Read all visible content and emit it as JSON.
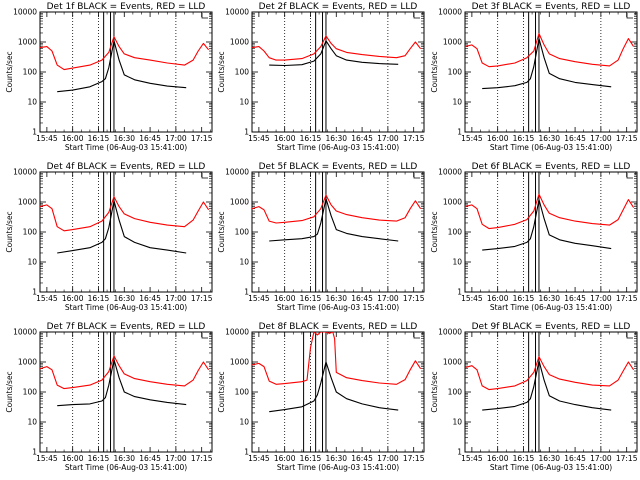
{
  "chart_data": [
    {
      "type": "line",
      "title": "Det 1f BLACK = Events, RED = LLD",
      "xlabel": "Start Time (06-Aug-03 15:41:00)",
      "ylabel": "Counts/sec",
      "yscale": "log",
      "ylim": [
        1,
        10000
      ],
      "x_ticks": [
        "15:45",
        "16:00",
        "16:15",
        "16:30",
        "16:45",
        "17:00",
        "17:15"
      ],
      "y_ticks": [
        "1",
        "10",
        "100",
        "1000",
        "10000"
      ],
      "series": [
        {
          "name": "Events",
          "color": "#000000",
          "x": [
            "15:51",
            "16:00",
            "16:10",
            "16:17",
            "16:19",
            "16:21",
            "16:24",
            "16:27",
            "16:30",
            "16:36",
            "16:45",
            "16:55",
            "17:06"
          ],
          "y": [
            22,
            25,
            32,
            48,
            60,
            140,
            1100,
            250,
            80,
            55,
            42,
            34,
            30
          ]
        },
        {
          "name": "LLD",
          "color": "#ff0000",
          "x": [
            "15:41",
            "15:45",
            "15:48",
            "15:51",
            "15:55",
            "16:00",
            "16:10",
            "16:17",
            "16:21",
            "16:24",
            "16:27",
            "16:30",
            "16:36",
            "16:45",
            "16:55",
            "17:05",
            "17:10",
            "17:13",
            "17:16",
            "17:19"
          ],
          "y": [
            650,
            700,
            500,
            170,
            120,
            135,
            170,
            250,
            450,
            1500,
            700,
            400,
            300,
            250,
            200,
            170,
            250,
            500,
            900,
            550
          ]
        }
      ],
      "markers_dotted": [
        "16:00",
        "16:15",
        "17:00"
      ],
      "markers_solid": [
        "16:18",
        "16:22",
        "16:24"
      ]
    },
    {
      "type": "line",
      "title": "Det 2f BLACK = Events, RED = LLD",
      "xlabel": "Start Time (06-Aug-03 15:41:00)",
      "ylabel": "Counts/sec",
      "yscale": "log",
      "ylim": [
        1,
        10000
      ],
      "x_ticks": [
        "15:45",
        "16:00",
        "16:15",
        "16:30",
        "16:45",
        "17:00",
        "17:15"
      ],
      "y_ticks": [
        "1",
        "10",
        "100",
        "1000",
        "10000"
      ],
      "series": [
        {
          "name": "Events",
          "color": "#000000",
          "x": [
            "15:51",
            "16:00",
            "16:10",
            "16:17",
            "16:21",
            "16:24",
            "16:27",
            "16:30",
            "16:36",
            "16:45",
            "16:55",
            "17:06"
          ],
          "y": [
            170,
            165,
            175,
            230,
            400,
            1100,
            600,
            350,
            250,
            210,
            190,
            180
          ]
        },
        {
          "name": "LLD",
          "color": "#ff0000",
          "x": [
            "15:41",
            "15:45",
            "15:48",
            "15:51",
            "15:55",
            "16:00",
            "16:10",
            "16:17",
            "16:21",
            "16:24",
            "16:27",
            "16:30",
            "16:36",
            "16:45",
            "16:55",
            "17:05",
            "17:10",
            "17:13",
            "17:16",
            "17:19"
          ],
          "y": [
            650,
            700,
            500,
            300,
            250,
            250,
            280,
            400,
            700,
            1600,
            900,
            600,
            450,
            380,
            330,
            300,
            350,
            600,
            1000,
            600
          ]
        }
      ],
      "markers_dotted": [
        "16:00",
        "16:15",
        "17:00"
      ],
      "markers_solid": [
        "16:18",
        "16:22",
        "16:24"
      ]
    },
    {
      "type": "line",
      "title": "Det 3f BLACK = Events, RED = LLD",
      "xlabel": "Start Time (06-Aug-03 15:41:00)",
      "ylabel": "Counts/sec",
      "yscale": "log",
      "ylim": [
        1,
        10000
      ],
      "x_ticks": [
        "15:45",
        "16:00",
        "16:15",
        "16:30",
        "16:45",
        "17:00",
        "17:15"
      ],
      "y_ticks": [
        "1",
        "10",
        "100",
        "1000",
        "10000"
      ],
      "series": [
        {
          "name": "Events",
          "color": "#000000",
          "x": [
            "15:51",
            "16:00",
            "16:10",
            "16:17",
            "16:19",
            "16:21",
            "16:24",
            "16:27",
            "16:30",
            "16:36",
            "16:45",
            "16:55",
            "17:06"
          ],
          "y": [
            28,
            30,
            35,
            45,
            60,
            150,
            1300,
            300,
            90,
            60,
            45,
            38,
            32
          ]
        },
        {
          "name": "LLD",
          "color": "#ff0000",
          "x": [
            "15:41",
            "15:45",
            "15:48",
            "15:51",
            "15:55",
            "16:00",
            "16:10",
            "16:17",
            "16:21",
            "16:24",
            "16:27",
            "16:30",
            "16:36",
            "16:45",
            "16:55",
            "17:05",
            "17:10",
            "17:13",
            "17:16",
            "17:19"
          ],
          "y": [
            700,
            800,
            600,
            200,
            150,
            160,
            200,
            300,
            500,
            1900,
            800,
            400,
            280,
            220,
            180,
            160,
            250,
            600,
            1300,
            700
          ]
        }
      ],
      "markers_dotted": [
        "16:00",
        "16:15",
        "17:00"
      ],
      "markers_solid": [
        "16:18",
        "16:22",
        "16:24"
      ]
    },
    {
      "type": "line",
      "title": "Det 4f BLACK = Events, RED = LLD",
      "xlabel": "Start Time (06-Aug-03 15:41:00)",
      "ylabel": "Counts/sec",
      "yscale": "log",
      "ylim": [
        1,
        10000
      ],
      "x_ticks": [
        "15:45",
        "16:00",
        "16:15",
        "16:30",
        "16:45",
        "17:00",
        "17:15"
      ],
      "y_ticks": [
        "1",
        "10",
        "100",
        "1000",
        "10000"
      ],
      "series": [
        {
          "name": "Events",
          "color": "#000000",
          "x": [
            "15:51",
            "16:00",
            "16:10",
            "16:17",
            "16:19",
            "16:21",
            "16:24",
            "16:27",
            "16:30",
            "16:36",
            "16:45",
            "16:55",
            "17:06"
          ],
          "y": [
            20,
            24,
            30,
            45,
            60,
            140,
            1100,
            250,
            70,
            45,
            30,
            25,
            20
          ]
        },
        {
          "name": "LLD",
          "color": "#ff0000",
          "x": [
            "15:41",
            "15:45",
            "15:48",
            "15:51",
            "15:55",
            "16:00",
            "16:10",
            "16:17",
            "16:21",
            "16:24",
            "16:27",
            "16:30",
            "16:36",
            "16:45",
            "16:55",
            "17:05",
            "17:10",
            "17:13",
            "17:16",
            "17:19"
          ],
          "y": [
            700,
            800,
            600,
            150,
            110,
            120,
            150,
            230,
            450,
            1500,
            700,
            400,
            280,
            210,
            170,
            150,
            250,
            500,
            1000,
            550
          ]
        }
      ],
      "markers_dotted": [
        "16:00",
        "16:15",
        "17:00"
      ],
      "markers_solid": [
        "16:18",
        "16:22",
        "16:24"
      ]
    },
    {
      "type": "line",
      "title": "Det 5f BLACK = Events, RED = LLD",
      "xlabel": "Start Time (06-Aug-03 15:41:00)",
      "ylabel": "Counts/sec",
      "yscale": "log",
      "ylim": [
        1,
        10000
      ],
      "x_ticks": [
        "15:45",
        "16:00",
        "16:15",
        "16:30",
        "16:45",
        "17:00",
        "17:15"
      ],
      "y_ticks": [
        "1",
        "10",
        "100",
        "1000",
        "10000"
      ],
      "series": [
        {
          "name": "Events",
          "color": "#000000",
          "x": [
            "15:51",
            "16:00",
            "16:10",
            "16:17",
            "16:19",
            "16:21",
            "16:24",
            "16:27",
            "16:30",
            "16:36",
            "16:45",
            "16:55",
            "17:06"
          ],
          "y": [
            50,
            55,
            60,
            70,
            85,
            200,
            1300,
            350,
            120,
            90,
            70,
            60,
            50
          ]
        },
        {
          "name": "LLD",
          "color": "#ff0000",
          "x": [
            "15:41",
            "15:45",
            "15:48",
            "15:51",
            "15:55",
            "16:00",
            "16:10",
            "16:17",
            "16:21",
            "16:24",
            "16:27",
            "16:30",
            "16:36",
            "16:45",
            "16:55",
            "17:05",
            "17:10",
            "17:13",
            "17:16",
            "17:19"
          ],
          "y": [
            600,
            700,
            550,
            230,
            200,
            210,
            240,
            320,
            600,
            1700,
            800,
            500,
            380,
            300,
            250,
            230,
            300,
            600,
            1100,
            600
          ]
        }
      ],
      "markers_dotted": [
        "16:00",
        "16:15",
        "17:00"
      ],
      "markers_solid": [
        "16:18",
        "16:22",
        "16:24"
      ]
    },
    {
      "type": "line",
      "title": "Det 6f BLACK = Events, RED = LLD",
      "xlabel": "Start Time (06-Aug-03 15:41:00)",
      "ylabel": "Counts/sec",
      "yscale": "log",
      "ylim": [
        1,
        10000
      ],
      "x_ticks": [
        "15:45",
        "16:00",
        "16:15",
        "16:30",
        "16:45",
        "17:00",
        "17:15"
      ],
      "y_ticks": [
        "1",
        "10",
        "100",
        "1000",
        "10000"
      ],
      "series": [
        {
          "name": "Events",
          "color": "#000000",
          "x": [
            "15:51",
            "16:00",
            "16:10",
            "16:17",
            "16:19",
            "16:21",
            "16:24",
            "16:27",
            "16:30",
            "16:36",
            "16:45",
            "16:55",
            "17:06"
          ],
          "y": [
            25,
            28,
            33,
            45,
            60,
            150,
            1200,
            280,
            80,
            55,
            42,
            35,
            28
          ]
        },
        {
          "name": "LLD",
          "color": "#ff0000",
          "x": [
            "15:41",
            "15:45",
            "15:48",
            "15:51",
            "15:55",
            "16:00",
            "16:10",
            "16:17",
            "16:21",
            "16:24",
            "16:27",
            "16:30",
            "16:36",
            "16:45",
            "16:55",
            "17:05",
            "17:10",
            "17:13",
            "17:16",
            "17:19"
          ],
          "y": [
            700,
            800,
            600,
            180,
            130,
            140,
            180,
            260,
            500,
            1800,
            800,
            420,
            300,
            230,
            190,
            170,
            260,
            550,
            1200,
            650
          ]
        }
      ],
      "markers_dotted": [
        "16:00",
        "16:15",
        "17:00"
      ],
      "markers_solid": [
        "16:18",
        "16:22",
        "16:24"
      ]
    },
    {
      "type": "line",
      "title": "Det 7f BLACK = Events, RED = LLD",
      "xlabel": "Start Time (06-Aug-03 15:41:00)",
      "ylabel": "Counts/sec",
      "yscale": "log",
      "ylim": [
        1,
        10000
      ],
      "x_ticks": [
        "15:45",
        "16:00",
        "16:15",
        "16:30",
        "16:45",
        "17:00",
        "17:15"
      ],
      "y_ticks": [
        "1",
        "10",
        "100",
        "1000",
        "10000"
      ],
      "series": [
        {
          "name": "Events",
          "color": "#000000",
          "x": [
            "15:51",
            "16:00",
            "16:10",
            "16:17",
            "16:19",
            "16:21",
            "16:24",
            "16:27",
            "16:30",
            "16:36",
            "16:45",
            "16:55",
            "17:06"
          ],
          "y": [
            35,
            38,
            40,
            50,
            65,
            170,
            1200,
            300,
            100,
            70,
            55,
            45,
            38
          ]
        },
        {
          "name": "LLD",
          "color": "#ff0000",
          "x": [
            "15:41",
            "15:45",
            "15:48",
            "15:51",
            "15:55",
            "16:00",
            "16:10",
            "16:17",
            "16:21",
            "16:24",
            "16:27",
            "16:30",
            "16:36",
            "16:45",
            "16:55",
            "17:05",
            "17:10",
            "17:13",
            "17:16",
            "17:19"
          ],
          "y": [
            600,
            700,
            550,
            170,
            130,
            140,
            170,
            250,
            480,
            1600,
            750,
            400,
            280,
            220,
            180,
            160,
            250,
            520,
            1000,
            550
          ]
        }
      ],
      "markers_dotted": [
        "16:00",
        "16:15",
        "17:00"
      ],
      "markers_solid": [
        "16:18",
        "16:22",
        "16:24"
      ]
    },
    {
      "type": "line",
      "title": "Det 8f BLACK = Events, RED = LLD",
      "xlabel": "Start Time (06-Aug-03 15:41:00)",
      "ylabel": "Counts/sec",
      "yscale": "log",
      "ylim": [
        1,
        10000
      ],
      "x_ticks": [
        "15:45",
        "16:00",
        "16:15",
        "16:30",
        "16:45",
        "17:00",
        "17:15"
      ],
      "y_ticks": [
        "1",
        "10",
        "100",
        "1000",
        "10000"
      ],
      "series": [
        {
          "name": "Events",
          "color": "#000000",
          "x": [
            "15:51",
            "16:00",
            "16:10",
            "16:17",
            "16:19",
            "16:21",
            "16:24",
            "16:27",
            "16:30",
            "16:36",
            "16:45",
            "16:55",
            "17:06"
          ],
          "y": [
            22,
            26,
            32,
            50,
            80,
            200,
            1000,
            300,
            100,
            60,
            40,
            30,
            25
          ]
        },
        {
          "name": "LLD",
          "color": "#ff0000",
          "x": [
            "15:41",
            "15:45",
            "15:48",
            "15:51",
            "15:55",
            "16:00",
            "16:10",
            "16:13",
            "16:15",
            "16:17",
            "16:19",
            "16:21",
            "16:24",
            "16:26",
            "16:28",
            "16:29",
            "16:30",
            "16:36",
            "16:45",
            "16:55",
            "17:05",
            "17:10",
            "17:13",
            "17:16",
            "17:19"
          ],
          "y": [
            800,
            900,
            700,
            230,
            180,
            190,
            220,
            250,
            3000,
            10000,
            8000,
            10000,
            10000,
            9000,
            10000,
            6000,
            450,
            300,
            240,
            200,
            180,
            260,
            550,
            1100,
            600
          ]
        }
      ],
      "markers_dotted": [
        "16:00",
        "16:15",
        "17:00"
      ],
      "markers_solid": [
        "16:11",
        "16:18",
        "16:22",
        "16:24"
      ]
    },
    {
      "type": "line",
      "title": "Det 9f BLACK = Events, RED = LLD",
      "xlabel": "Start Time (06-Aug-03 15:41:00)",
      "ylabel": "Counts/sec",
      "yscale": "log",
      "ylim": [
        1,
        10000
      ],
      "x_ticks": [
        "15:45",
        "16:00",
        "16:15",
        "16:30",
        "16:45",
        "17:00",
        "17:15"
      ],
      "y_ticks": [
        "1",
        "10",
        "100",
        "1000",
        "10000"
      ],
      "series": [
        {
          "name": "Events",
          "color": "#000000",
          "x": [
            "15:51",
            "16:00",
            "16:10",
            "16:17",
            "16:19",
            "16:21",
            "16:24",
            "16:27",
            "16:30",
            "16:36",
            "16:45",
            "16:55",
            "17:06"
          ],
          "y": [
            25,
            28,
            33,
            45,
            60,
            150,
            1100,
            250,
            75,
            50,
            38,
            30,
            25
          ]
        },
        {
          "name": "LLD",
          "color": "#ff0000",
          "x": [
            "15:41",
            "15:45",
            "15:48",
            "15:51",
            "15:55",
            "16:00",
            "16:10",
            "16:17",
            "16:21",
            "16:24",
            "16:27",
            "16:30",
            "16:36",
            "16:45",
            "16:55",
            "17:05",
            "17:10",
            "17:13",
            "17:16",
            "17:19"
          ],
          "y": [
            650,
            750,
            550,
            160,
            120,
            130,
            160,
            240,
            450,
            1500,
            700,
            380,
            270,
            210,
            170,
            160,
            250,
            500,
            1000,
            550
          ]
        }
      ],
      "markers_dotted": [
        "16:00",
        "16:15",
        "17:00"
      ],
      "markers_solid": [
        "16:18",
        "16:22",
        "16:24"
      ]
    }
  ]
}
